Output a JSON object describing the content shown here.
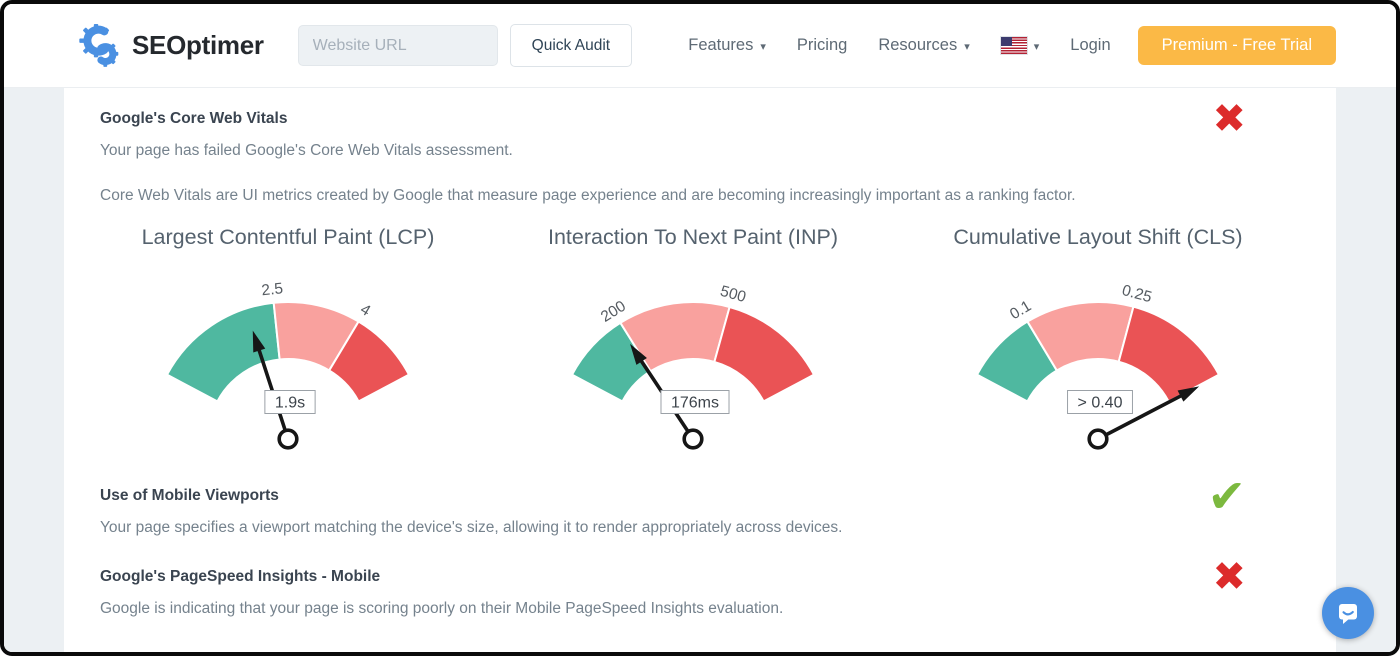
{
  "header": {
    "logo_text": "SEOptimer",
    "url_placeholder": "Website URL",
    "quick_audit_label": "Quick Audit",
    "nav_items": [
      {
        "label": "Features",
        "has_dropdown": true
      },
      {
        "label": "Pricing",
        "has_dropdown": false
      },
      {
        "label": "Resources",
        "has_dropdown": true
      }
    ],
    "language_selector": {
      "flag": "us-flag-icon",
      "has_dropdown": true
    },
    "login_label": "Login",
    "premium_label": "Premium - Free Trial"
  },
  "icons": {
    "pass_glyph": "✔",
    "fail_glyph": "✖",
    "chevron": "▾"
  },
  "colors": {
    "brand_blue": "#4A90E2",
    "premium_orange": "#FBB946",
    "pass_green": "#7CB93F",
    "fail_red": "#DC2B2B",
    "gauge_good": "#4FB8A0",
    "gauge_needs_improvement": "#F9A19E",
    "gauge_poor": "#EA5355",
    "page_background": "#ECF0F3"
  },
  "sections": {
    "core_web_vitals": {
      "title": "Google's Core Web Vitals",
      "status": "fail",
      "summary": "Your page has failed Google's Core Web Vitals assessment.",
      "description": "Core Web Vitals are UI metrics created by Google that measure page experience and are becoming increasingly important as a ranking factor."
    },
    "mobile_viewports": {
      "title": "Use of Mobile Viewports",
      "status": "pass",
      "summary": "Your page specifies a viewport matching the device's size, allowing it to render appropriately across devices."
    },
    "pagespeed_mobile": {
      "title": "Google's PageSpeed Insights - Mobile",
      "status": "fail",
      "summary": "Google is indicating that your page is scoring poorly on their Mobile PageSpeed Insights evaluation."
    }
  },
  "chart_data": [
    {
      "type": "gauge",
      "title": "Largest Contentful Paint (LCP)",
      "value_label": "1.9s",
      "scale_ticks": [
        {
          "label": "2.5",
          "angle": 96
        },
        {
          "label": "4",
          "angle": 59
        }
      ],
      "segments": [
        {
          "name": "good",
          "color": "#4FB8A0",
          "from_angle": 152,
          "to_angle": 96
        },
        {
          "name": "needs-improvement",
          "color": "#F9A19E",
          "from_angle": 96,
          "to_angle": 59
        },
        {
          "name": "poor",
          "color": "#EA5355",
          "from_angle": 59,
          "to_angle": 28
        }
      ],
      "needle_angle": 108
    },
    {
      "type": "gauge",
      "title": "Interaction To Next Paint (INP)",
      "value_label": "176ms",
      "scale_ticks": [
        {
          "label": "200",
          "angle": 122
        },
        {
          "label": "500",
          "angle": 74.5
        }
      ],
      "segments": [
        {
          "name": "good",
          "color": "#4FB8A0",
          "from_angle": 152,
          "to_angle": 122
        },
        {
          "name": "needs-improvement",
          "color": "#F9A19E",
          "from_angle": 122,
          "to_angle": 74.5
        },
        {
          "name": "poor",
          "color": "#EA5355",
          "from_angle": 74.5,
          "to_angle": 28
        }
      ],
      "needle_angle": 123.5
    },
    {
      "type": "gauge",
      "title": "Cumulative Layout Shift (CLS)",
      "value_label": "> 0.40",
      "scale_ticks": [
        {
          "label": "0.1",
          "angle": 121
        },
        {
          "label": "0.25",
          "angle": 75
        }
      ],
      "segments": [
        {
          "name": "good",
          "color": "#4FB8A0",
          "from_angle": 152,
          "to_angle": 121
        },
        {
          "name": "needs-improvement",
          "color": "#F9A19E",
          "from_angle": 121,
          "to_angle": 75
        },
        {
          "name": "poor",
          "color": "#EA5355",
          "from_angle": 75,
          "to_angle": 28
        }
      ],
      "needle_angle": 27.5
    }
  ],
  "chat_widget": {
    "icon": "chat-bubble-icon"
  }
}
